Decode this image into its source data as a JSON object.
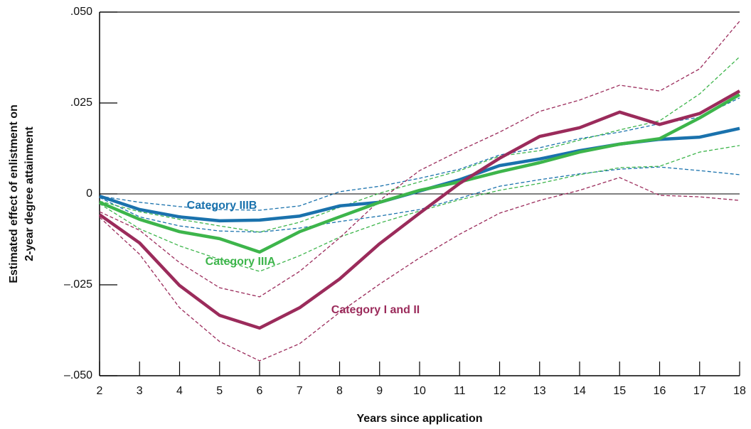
{
  "chart_data": {
    "type": "line",
    "ylabel": [
      "Estimated effect of enlistment on",
      "2-year degree attainment"
    ],
    "xlabel": "Years since application",
    "x": [
      2,
      3,
      4,
      5,
      6,
      7,
      8,
      9,
      10,
      11,
      12,
      13,
      14,
      15,
      16,
      17,
      18
    ],
    "xlim": [
      2,
      18
    ],
    "xticks": [
      2,
      3,
      4,
      5,
      6,
      7,
      8,
      9,
      10,
      11,
      12,
      13,
      14,
      15,
      16,
      17,
      18
    ],
    "ylim": [
      -0.05,
      0.05
    ],
    "yticks": [
      {
        "value": -0.05,
        "label": "–.050"
      },
      {
        "value": -0.025,
        "label": "–.025"
      },
      0,
      {
        "value": 0.025,
        "label": ".025"
      },
      {
        "value": 0.05,
        "label": ".050"
      }
    ],
    "series": [
      {
        "name": "Category IIIB",
        "color": "#1a72ad",
        "values": [
          -0.0006,
          -0.0043,
          -0.0063,
          -0.0074,
          -0.0072,
          -0.0061,
          -0.0033,
          -0.0023,
          0.0008,
          0.0039,
          0.0078,
          0.0096,
          0.0119,
          0.0137,
          0.015,
          0.0156,
          0.018
        ],
        "upper": [
          -0.0006,
          -0.0023,
          -0.0035,
          -0.0043,
          -0.0045,
          -0.0033,
          0.0006,
          0.0021,
          0.0043,
          0.0068,
          0.0107,
          0.0127,
          0.0152,
          0.017,
          0.0193,
          0.0211,
          0.0264
        ],
        "lower": [
          -0.001,
          -0.0063,
          -0.0088,
          -0.0102,
          -0.0105,
          -0.0094,
          -0.0076,
          -0.0061,
          -0.0043,
          -0.0012,
          0.0021,
          0.0039,
          0.0055,
          0.0068,
          0.0074,
          0.0064,
          0.0053
        ]
      },
      {
        "name": "Category IIIA",
        "color": "#3db54b",
        "values": [
          -0.0023,
          -0.007,
          -0.0104,
          -0.0123,
          -0.016,
          -0.0104,
          -0.0063,
          -0.0023,
          0.001,
          0.0033,
          0.0061,
          0.0086,
          0.0115,
          0.0137,
          0.0152,
          0.0209,
          0.0273
        ],
        "upper": [
          -0.002,
          -0.0049,
          -0.007,
          -0.0088,
          -0.0105,
          -0.0078,
          -0.0037,
          0.0002,
          0.0033,
          0.0064,
          0.0104,
          0.0119,
          0.0148,
          0.0176,
          0.0201,
          0.0275,
          0.0377
        ],
        "lower": [
          -0.0027,
          -0.0096,
          -0.0143,
          -0.018,
          -0.0213,
          -0.017,
          -0.0119,
          -0.008,
          -0.0047,
          -0.0016,
          0.001,
          0.0029,
          0.0053,
          0.0072,
          0.0076,
          0.0115,
          0.0133
        ]
      },
      {
        "name": "Category I and II",
        "color": "#9b2b5b",
        "values": [
          -0.0057,
          -0.0135,
          -0.0252,
          -0.0334,
          -0.0369,
          -0.0313,
          -0.0234,
          -0.0137,
          -0.0053,
          0.0029,
          0.0098,
          0.0158,
          0.0182,
          0.0225,
          0.0191,
          0.0221,
          0.0283
        ],
        "upper": [
          -0.0049,
          -0.01,
          -0.0189,
          -0.0258,
          -0.0283,
          -0.0213,
          -0.0121,
          -0.0018,
          0.0064,
          0.0119,
          0.017,
          0.0227,
          0.0258,
          0.0299,
          0.0283,
          0.0344,
          0.0475
        ],
        "lower": [
          -0.0064,
          -0.0166,
          -0.0313,
          -0.0406,
          -0.0459,
          -0.0412,
          -0.0326,
          -0.0248,
          -0.0176,
          -0.0111,
          -0.0053,
          -0.0018,
          0.001,
          0.0045,
          -0.0004,
          -0.0008,
          -0.0018
        ]
      }
    ]
  }
}
